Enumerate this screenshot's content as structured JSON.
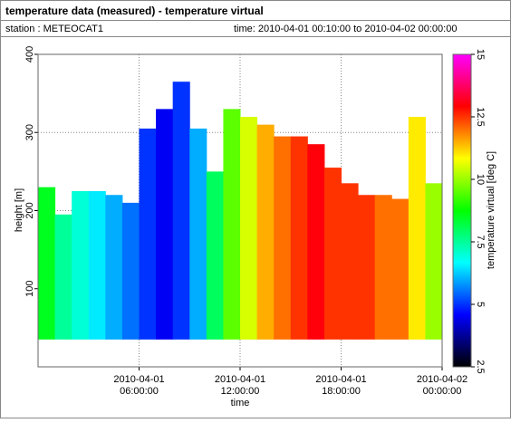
{
  "header": {
    "title": "temperature data (measured) - temperature virtual",
    "station": "station : METEOCAT1",
    "time": "time: 2010-04-01 00:10:00 to 2010-04-02 00:00:00"
  },
  "chart_data": {
    "type": "heatmap",
    "x_label": "time",
    "y_label": "height [m]",
    "colorbar_label": "temperature virtual [deg C]",
    "x": [
      0,
      1,
      2,
      3,
      4,
      5,
      6,
      7,
      8,
      9,
      10,
      11,
      12,
      13,
      14,
      15,
      16,
      17,
      18,
      19,
      20,
      21,
      22,
      23
    ],
    "tops": [
      230,
      195,
      225,
      225,
      220,
      210,
      305,
      330,
      365,
      305,
      250,
      330,
      320,
      310,
      295,
      295,
      285,
      255,
      235,
      220,
      220,
      215,
      320,
      235
    ],
    "values": [
      8.5,
      7.5,
      7,
      6.5,
      6,
      5.5,
      5,
      4.5,
      5,
      6,
      8,
      9.5,
      10.5,
      11.5,
      12,
      12.5,
      13,
      12.5,
      12.5,
      12.5,
      12,
      12,
      11,
      10
    ],
    "min_height": 35,
    "xlim": [
      0,
      24
    ],
    "xticks": [
      {
        "value": 6,
        "label": [
          "2010-04-01",
          "06:00:00"
        ]
      },
      {
        "value": 12,
        "label": [
          "2010-04-01",
          "12:00:00"
        ]
      },
      {
        "value": 18,
        "label": [
          "2010-04-01",
          "18:00:00"
        ]
      },
      {
        "value": 24,
        "label": [
          "2010-04-02",
          "00:00:00"
        ]
      }
    ],
    "ylim": [
      0,
      400
    ],
    "yticks": [
      100,
      200,
      300,
      400
    ],
    "clim": [
      2.5,
      15
    ],
    "cticks": [
      2.5,
      5,
      7.5,
      10,
      12.5,
      15
    ],
    "colormap": [
      "#000000",
      "#0000ff",
      "#00ffff",
      "#00ff00",
      "#ffff00",
      "#ff0000",
      "#ff00ff"
    ],
    "grid": true
  }
}
